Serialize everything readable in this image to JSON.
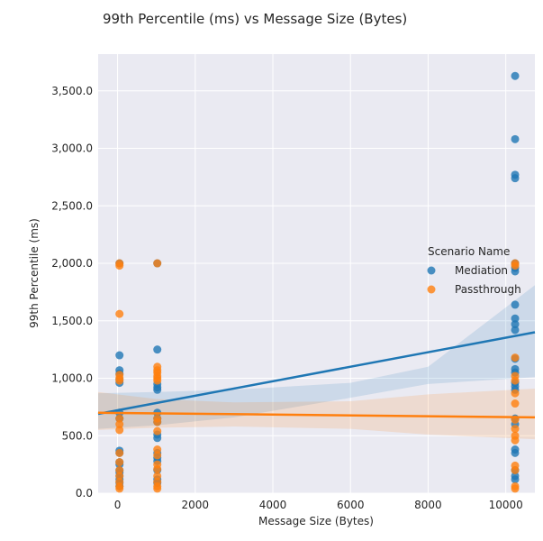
{
  "chart_data": {
    "type": "scatter",
    "title": "99th Percentile (ms) vs Message Size (Bytes)",
    "xlabel": "Message Size (Bytes)",
    "ylabel": "99th Percentile (ms)",
    "xlim": [
      -500,
      10750
    ],
    "ylim": [
      0,
      3820
    ],
    "xticks": [
      0,
      2000,
      4000,
      6000,
      8000,
      10000
    ],
    "xtick_labels": [
      "0",
      "2000",
      "4000",
      "6000",
      "8000",
      "10000"
    ],
    "yticks": [
      0,
      500,
      1000,
      1500,
      2000,
      2500,
      3000,
      3500
    ],
    "ytick_labels": [
      "0.0",
      "500.0",
      "1,000.0",
      "1,500.0",
      "2,000.0",
      "2,500.0",
      "3,000.0",
      "3,500.0"
    ],
    "grid": true,
    "legend_title": "Scenario Name",
    "legend_position": "right",
    "series": [
      {
        "name": "Mediation",
        "color": "#1f77b4",
        "x": [
          50,
          50,
          50,
          50,
          50,
          50,
          50,
          50,
          50,
          50,
          50,
          50,
          50,
          50,
          50,
          50,
          50,
          50,
          1024,
          1024,
          1024,
          1024,
          1024,
          1024,
          1024,
          1024,
          1024,
          1024,
          1024,
          1024,
          1024,
          1024,
          1024,
          1024,
          10240,
          10240,
          10240,
          10240,
          10240,
          10240,
          10240,
          10240,
          10240,
          10240,
          10240,
          10240,
          10240,
          10240,
          10240,
          10240,
          10240,
          10240,
          10240,
          10240,
          10240,
          10240,
          10240,
          10240
        ],
        "y": [
          2000,
          1200,
          1070,
          1040,
          990,
          960,
          700,
          650,
          370,
          350,
          270,
          250,
          200,
          180,
          150,
          120,
          90,
          60,
          2000,
          1250,
          950,
          920,
          900,
          700,
          650,
          620,
          510,
          480,
          350,
          310,
          280,
          200,
          120,
          90,
          3630,
          3080,
          2770,
          2740,
          2000,
          1960,
          1930,
          1640,
          1520,
          1470,
          1420,
          1170,
          1080,
          1050,
          960,
          930,
          900,
          650,
          600,
          380,
          350,
          200,
          150,
          120
        ],
        "fit": [
          [
            -500,
            690
          ],
          [
            10750,
            1400
          ]
        ],
        "ci_upper": [
          [
            -500,
            870
          ],
          [
            1000,
            880
          ],
          [
            3000,
            900
          ],
          [
            6000,
            960
          ],
          [
            8000,
            1100
          ],
          [
            10750,
            1810
          ]
        ],
        "ci_lower": [
          [
            -500,
            560
          ],
          [
            1000,
            590
          ],
          [
            3000,
            660
          ],
          [
            6000,
            830
          ],
          [
            8000,
            950
          ],
          [
            10750,
            1010
          ]
        ]
      },
      {
        "name": "Passthrough",
        "color": "#ff7f0e",
        "x": [
          50,
          50,
          50,
          50,
          50,
          50,
          50,
          50,
          50,
          50,
          50,
          50,
          50,
          50,
          50,
          50,
          1024,
          1024,
          1024,
          1024,
          1024,
          1024,
          1024,
          1024,
          1024,
          1024,
          1024,
          1024,
          1024,
          1024,
          1024,
          1024,
          1024,
          1024,
          10240,
          10240,
          10240,
          10240,
          10240,
          10240,
          10240,
          10240,
          10240,
          10240,
          10240,
          10240,
          10240,
          10240,
          10240
        ],
        "y": [
          2000,
          1980,
          1560,
          1030,
          1000,
          980,
          650,
          600,
          550,
          350,
          270,
          200,
          150,
          100,
          60,
          40,
          2000,
          1100,
          1070,
          1050,
          1020,
          1000,
          980,
          650,
          620,
          540,
          380,
          330,
          250,
          210,
          150,
          100,
          60,
          40,
          2000,
          1980,
          1180,
          1020,
          980,
          870,
          780,
          640,
          560,
          500,
          460,
          240,
          200,
          60,
          40
        ],
        "fit": [
          [
            -500,
            700
          ],
          [
            10750,
            660
          ]
        ],
        "ci_upper": [
          [
            -500,
            880
          ],
          [
            1000,
            820
          ],
          [
            3000,
            790
          ],
          [
            6000,
            800
          ],
          [
            8000,
            860
          ],
          [
            10750,
            910
          ]
        ],
        "ci_lower": [
          [
            -500,
            550
          ],
          [
            1000,
            570
          ],
          [
            3000,
            580
          ],
          [
            6000,
            560
          ],
          [
            8000,
            510
          ],
          [
            10750,
            470
          ]
        ]
      }
    ]
  }
}
